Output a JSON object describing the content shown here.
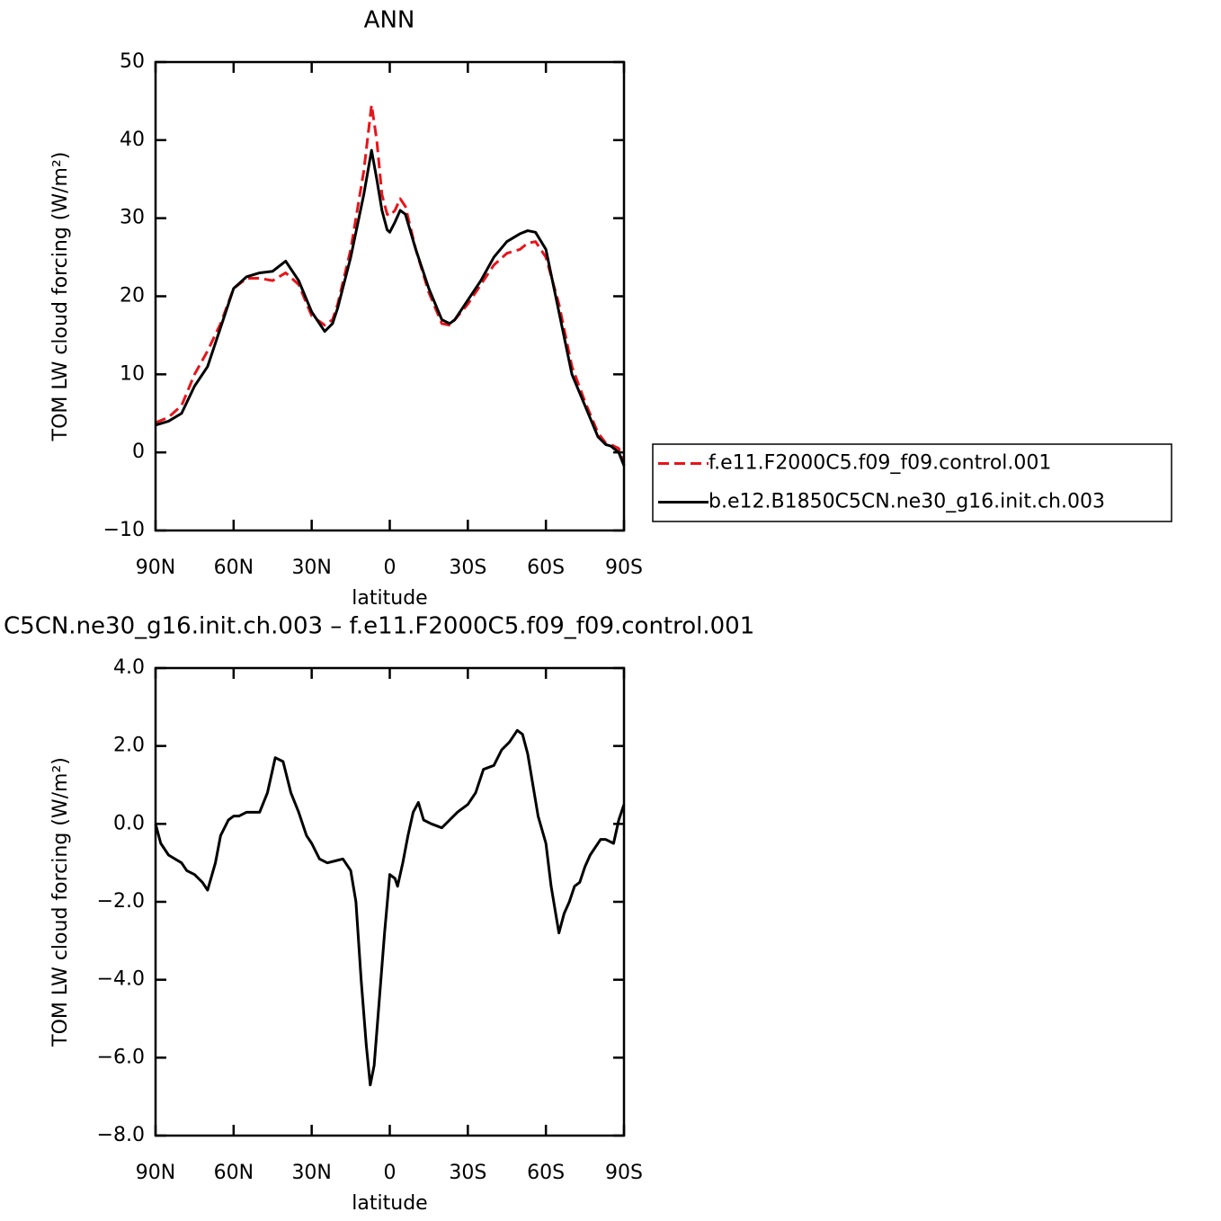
{
  "chart_data": [
    {
      "type": "line",
      "title": "ANN",
      "x_label": "latitude",
      "y_label": "TOM LW cloud forcing (W/m²)",
      "xlim": [
        90,
        -90
      ],
      "xticks": [
        {
          "value": 90,
          "label": "90N"
        },
        {
          "value": 60,
          "label": "60N"
        },
        {
          "value": 30,
          "label": "30N"
        },
        0,
        {
          "value": -30,
          "label": "30S"
        },
        {
          "value": -60,
          "label": "60S"
        },
        {
          "value": -90,
          "label": "90S"
        }
      ],
      "ylim": [
        -10,
        50
      ],
      "yticks": [
        {
          "value": -10,
          "label": "−10"
        },
        0,
        10,
        20,
        30,
        40,
        50
      ],
      "grid": false,
      "legend": "right",
      "x": [
        90,
        85,
        80,
        75,
        70,
        65,
        60,
        55,
        50,
        45,
        40,
        35,
        30,
        25,
        22,
        20,
        15,
        10,
        7,
        5,
        3,
        1,
        0,
        -2,
        -4,
        -6,
        -10,
        -15,
        -20,
        -23,
        -25,
        -30,
        -35,
        -40,
        -45,
        -50,
        -53,
        -56,
        -60,
        -65,
        -70,
        -75,
        -80,
        -83,
        -85,
        -88,
        -90
      ],
      "series": [
        {
          "name": "f.e11.F2000C5.f09_f09.control.001",
          "color": "#e8141a",
          "dashed": true,
          "values": [
            3.8,
            4.5,
            6,
            10,
            13,
            16.5,
            21,
            22.3,
            22.3,
            22,
            23,
            21.5,
            17.5,
            16.3,
            17,
            19,
            26,
            36,
            44.5,
            40,
            33,
            30.5,
            30.3,
            31,
            32.5,
            31.5,
            26,
            20.5,
            16.5,
            16.3,
            17,
            19,
            21.5,
            24,
            25.5,
            26,
            26.8,
            27,
            25,
            19,
            11,
            6.5,
            2.5,
            1.2,
            1,
            0.5,
            -1.6
          ]
        },
        {
          "name": "b.e12.B1850C5CN.ne30_g16.init.ch.003",
          "color": "#000000",
          "dashed": false,
          "values": [
            3.5,
            4,
            5,
            8.5,
            11,
            16,
            21,
            22.5,
            23,
            23.2,
            24.5,
            22,
            18,
            15.5,
            16.5,
            18.5,
            25,
            33,
            38.7,
            35,
            31,
            28.5,
            28.2,
            29.5,
            31,
            30.5,
            26,
            21,
            17,
            16.5,
            17,
            19.5,
            22,
            25,
            27,
            28,
            28.4,
            28.2,
            26,
            18,
            10,
            6,
            2,
            1,
            0.8,
            0,
            -1.7
          ]
        }
      ]
    },
    {
      "type": "line",
      "title": "C5CN.ne30_g16.init.ch.003 – f.e11.F2000C5.f09_f09.control.001",
      "x_label": "latitude",
      "y_label": "TOM LW cloud forcing (W/m²)",
      "xlim": [
        90,
        -90
      ],
      "xticks": [
        {
          "value": 90,
          "label": "90N"
        },
        {
          "value": 60,
          "label": "60N"
        },
        {
          "value": 30,
          "label": "30N"
        },
        0,
        {
          "value": -30,
          "label": "30S"
        },
        {
          "value": -60,
          "label": "60S"
        },
        {
          "value": -90,
          "label": "90S"
        }
      ],
      "ylim": [
        -8,
        4
      ],
      "yticks": [
        {
          "value": -8,
          "label": "−8.0"
        },
        {
          "value": -6,
          "label": "−6.0"
        },
        {
          "value": -4,
          "label": "−4.0"
        },
        {
          "value": -2,
          "label": "−2.0"
        },
        {
          "value": 0,
          "label": "0.0"
        },
        {
          "value": 2,
          "label": "2.0"
        },
        {
          "value": 4,
          "label": "4.0"
        }
      ],
      "grid": false,
      "x": [
        90,
        88,
        85,
        80,
        78,
        75,
        72,
        70,
        67,
        65,
        62,
        60,
        58,
        55,
        50,
        47,
        44,
        41,
        38,
        35,
        32,
        30,
        27,
        24,
        21,
        18,
        15,
        13,
        11,
        9,
        7.5,
        6,
        4,
        2,
        0,
        -2,
        -3,
        -5,
        -7,
        -9,
        -11,
        -13,
        -16,
        -20,
        -23,
        -26,
        -30,
        -33,
        -36,
        -40,
        -43,
        -46,
        -49,
        -51,
        -53,
        -57,
        -60,
        -62,
        -65,
        -67,
        -69,
        -71,
        -73,
        -75,
        -77,
        -79,
        -81,
        -83,
        -86,
        -88,
        -90
      ],
      "series": [
        {
          "color": "#000000",
          "dashed": false,
          "values": [
            0,
            -0.5,
            -0.8,
            -1.0,
            -1.2,
            -1.3,
            -1.5,
            -1.7,
            -1.0,
            -0.3,
            0.1,
            0.2,
            0.2,
            0.3,
            0.3,
            0.8,
            1.7,
            1.6,
            0.8,
            0.3,
            -0.3,
            -0.5,
            -0.9,
            -1.0,
            -0.95,
            -0.9,
            -1.2,
            -2.0,
            -4.0,
            -5.7,
            -6.7,
            -6.2,
            -4.5,
            -2.8,
            -1.3,
            -1.4,
            -1.6,
            -1.0,
            -0.3,
            0.3,
            0.55,
            0.1,
            0.0,
            -0.1,
            0.1,
            0.3,
            0.5,
            0.8,
            1.4,
            1.5,
            1.9,
            2.1,
            2.4,
            2.3,
            1.8,
            0.2,
            -0.5,
            -1.6,
            -2.8,
            -2.3,
            -2.0,
            -1.6,
            -1.5,
            -1.1,
            -0.8,
            -0.6,
            -0.4,
            -0.4,
            -0.5,
            0.1,
            0.5
          ]
        }
      ]
    }
  ]
}
